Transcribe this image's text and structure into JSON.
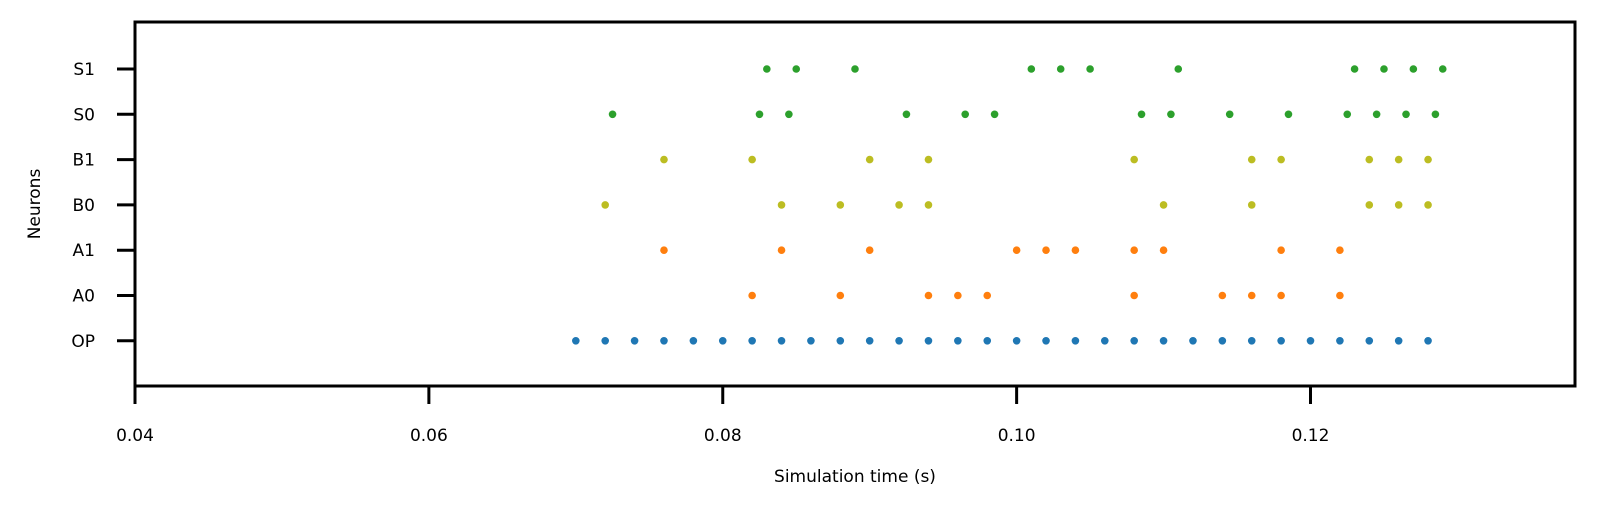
{
  "chart_data": {
    "type": "scatter",
    "title": "",
    "xlabel": "Simulation time (s)",
    "ylabel": "Neurons",
    "xlim": [
      0.04,
      0.138
    ],
    "xticks": [
      0.04,
      0.06,
      0.08,
      0.1,
      0.12
    ],
    "xtick_labels": [
      "0.04",
      "0.06",
      "0.08",
      "0.10",
      "0.12"
    ],
    "categories": [
      "OP",
      "A0",
      "A1",
      "B0",
      "B1",
      "S0",
      "S1"
    ],
    "grid": false,
    "legend": "none",
    "series": [
      {
        "category": "OP",
        "color": "#1f77b4",
        "x": [
          0.07,
          0.072,
          0.074,
          0.076,
          0.078,
          0.08,
          0.082,
          0.084,
          0.086,
          0.088,
          0.09,
          0.092,
          0.094,
          0.096,
          0.098,
          0.1,
          0.102,
          0.104,
          0.106,
          0.108,
          0.11,
          0.112,
          0.114,
          0.116,
          0.118,
          0.12,
          0.122,
          0.124,
          0.126,
          0.128
        ]
      },
      {
        "category": "A0",
        "color": "#ff7f0e",
        "x": [
          0.082,
          0.088,
          0.094,
          0.096,
          0.098,
          0.108,
          0.114,
          0.116,
          0.118,
          0.122
        ]
      },
      {
        "category": "A1",
        "color": "#ff7f0e",
        "x": [
          0.076,
          0.084,
          0.09,
          0.1,
          0.102,
          0.104,
          0.108,
          0.11,
          0.118,
          0.122
        ]
      },
      {
        "category": "B0",
        "color": "#bcbd22",
        "x": [
          0.072,
          0.084,
          0.088,
          0.092,
          0.094,
          0.11,
          0.116,
          0.124,
          0.126,
          0.128
        ]
      },
      {
        "category": "B1",
        "color": "#bcbd22",
        "x": [
          0.076,
          0.082,
          0.09,
          0.094,
          0.108,
          0.116,
          0.118,
          0.124,
          0.126,
          0.128
        ]
      },
      {
        "category": "S0",
        "color": "#2ca02c",
        "x": [
          0.0725,
          0.0825,
          0.0845,
          0.0925,
          0.0965,
          0.0985,
          0.1085,
          0.1105,
          0.1145,
          0.1185,
          0.1225,
          0.1245,
          0.1265,
          0.1285
        ]
      },
      {
        "category": "S1",
        "color": "#2ca02c",
        "x": [
          0.083,
          0.085,
          0.089,
          0.101,
          0.103,
          0.105,
          0.111,
          0.123,
          0.125,
          0.127,
          0.129
        ]
      }
    ]
  }
}
